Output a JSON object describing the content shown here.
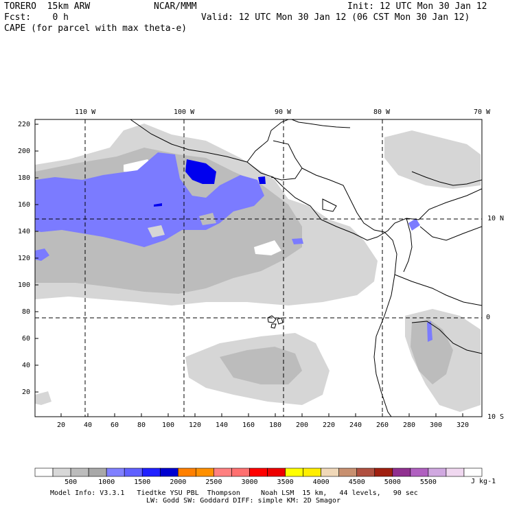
{
  "header": {
    "model": "TORERO  15km ARW",
    "org": "NCAR/MMM",
    "init": "Init: 12 UTC Mon 30 Jan 12",
    "fcst": "Fcst:    0 h",
    "valid": "Valid: 12 UTC Mon 30 Jan 12 (06 CST Mon 30 Jan 12)",
    "field": "CAPE (for parcel with max theta-e)"
  },
  "map": {
    "top_lon_labels": [
      "110 W",
      "100 W",
      "90 W",
      "80 W",
      "70 W"
    ],
    "right_lat_labels": [
      "10 N",
      "0",
      "10 S"
    ],
    "left_axis_ticks": [
      "220",
      "200",
      "180",
      "160",
      "140",
      "120",
      "100",
      "80",
      "60",
      "40",
      "20"
    ],
    "bottom_axis_ticks": [
      "20",
      "40",
      "60",
      "80",
      "100",
      "120",
      "140",
      "160",
      "180",
      "200",
      "220",
      "240",
      "260",
      "280",
      "300",
      "320"
    ],
    "colors": {
      "light_gray": "#d6d6d6",
      "mid_gray": "#bcbcbc",
      "lavender_blue": "#7b7bff",
      "deep_blue": "#0000ee",
      "coast": "#000000"
    }
  },
  "colorbar": {
    "labels": [
      "500",
      "1000",
      "1500",
      "2000",
      "2500",
      "3000",
      "3500",
      "4000",
      "4500",
      "5000",
      "5500"
    ],
    "units": "J kg-1",
    "colors": [
      "#ffffff",
      "#d8d8d8",
      "#bcbcbc",
      "#a8a8a8",
      "#8080ff",
      "#6060ff",
      "#2020ff",
      "#0000d0",
      "#ff8000",
      "#ff9000",
      "#ff8080",
      "#ff7070",
      "#ff0000",
      "#ee0000",
      "#ffff00",
      "#ffee00",
      "#f0d8b8",
      "#c89070",
      "#b05040",
      "#a02010",
      "#903090",
      "#b060c0",
      "#d0a8e0",
      "#f0d8f0",
      "#ffffff"
    ]
  },
  "footer": {
    "line1": "Model Info: V3.3.1   Tiedtke YSU PBL  Thompson     Noah LSM  15 km,   44 levels,   90 sec",
    "line2": "LW: Godd SW: Goddard DIFF: simple KM: 2D Smagor"
  }
}
